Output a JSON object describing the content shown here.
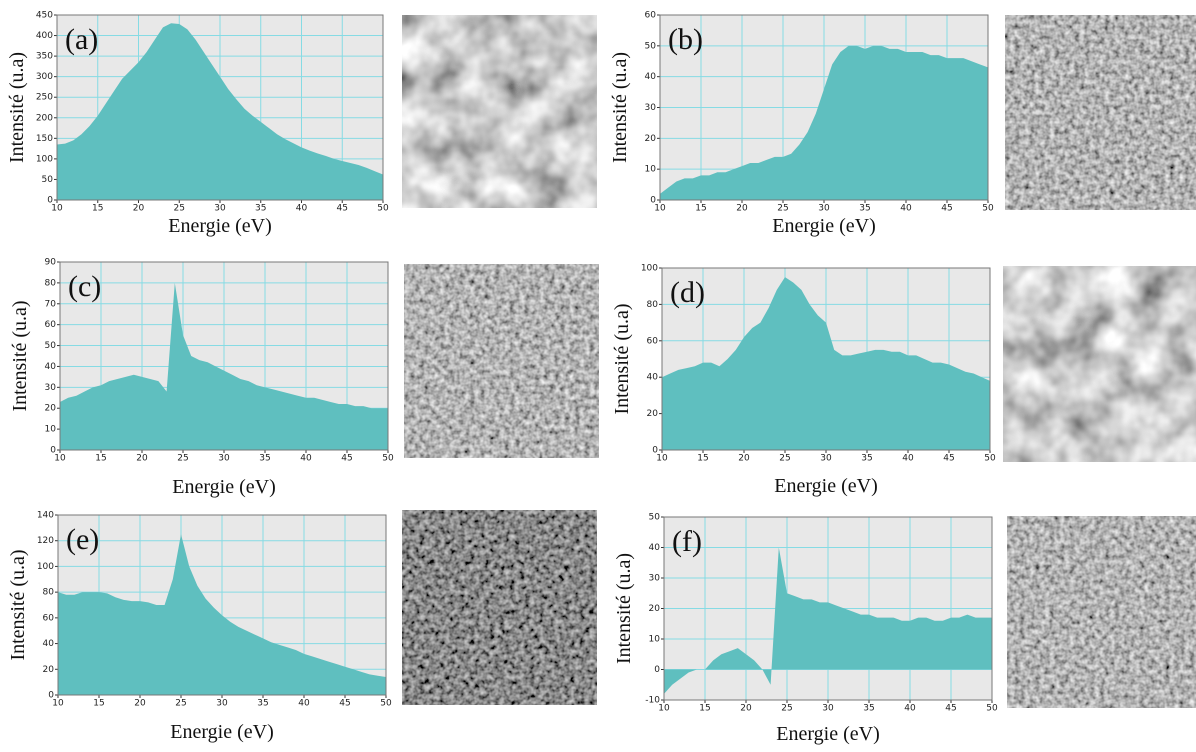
{
  "chart_data": [
    {
      "type": "area",
      "label": "(a)",
      "xlabel": "Energie (eV)",
      "ylabel": "Intensité (u.a)",
      "color": "#5fbfbf",
      "grid": true,
      "x": [
        10,
        11,
        12,
        13,
        14,
        15,
        16,
        17,
        18,
        19,
        20,
        21,
        22,
        23,
        24,
        25,
        26,
        27,
        28,
        29,
        30,
        31,
        32,
        33,
        34,
        35,
        36,
        37,
        38,
        39,
        40,
        41,
        42,
        43,
        44,
        45,
        46,
        47,
        48,
        49,
        50
      ],
      "values": [
        135,
        137,
        145,
        160,
        180,
        205,
        235,
        265,
        295,
        315,
        335,
        360,
        390,
        420,
        430,
        428,
        415,
        390,
        360,
        330,
        300,
        270,
        245,
        222,
        205,
        190,
        175,
        160,
        148,
        138,
        128,
        120,
        113,
        107,
        100,
        95,
        90,
        85,
        78,
        70,
        62
      ],
      "xlim": [
        10,
        50
      ],
      "xticks": [
        10,
        15,
        20,
        25,
        30,
        35,
        40,
        45,
        50
      ],
      "ylim": [
        0,
        450
      ],
      "yticks": [
        0,
        50,
        100,
        150,
        200,
        250,
        300,
        350,
        400,
        450
      ]
    },
    {
      "type": "area",
      "label": "(b)",
      "xlabel": "Energie (eV)",
      "ylabel": "Intensité (u.a)",
      "color": "#5fbfbf",
      "grid": true,
      "x": [
        10,
        11,
        12,
        13,
        14,
        15,
        16,
        17,
        18,
        19,
        20,
        21,
        22,
        23,
        24,
        25,
        26,
        27,
        28,
        29,
        30,
        31,
        32,
        33,
        34,
        35,
        36,
        37,
        38,
        39,
        40,
        41,
        42,
        43,
        44,
        45,
        46,
        47,
        48,
        49,
        50
      ],
      "values": [
        2,
        4,
        6,
        7,
        7,
        8,
        8,
        9,
        9,
        10,
        11,
        12,
        12,
        13,
        14,
        14,
        15,
        18,
        22,
        28,
        36,
        44,
        48,
        50,
        50,
        49,
        50,
        50,
        49,
        49,
        48,
        48,
        48,
        47,
        47,
        46,
        46,
        46,
        45,
        44,
        43
      ],
      "xlim": [
        10,
        50
      ],
      "xticks": [
        10,
        15,
        20,
        25,
        30,
        35,
        40,
        45,
        50
      ],
      "ylim": [
        0,
        60
      ],
      "yticks": [
        0,
        10,
        20,
        30,
        40,
        50,
        60
      ]
    },
    {
      "type": "area",
      "label": "(c)",
      "xlabel": "Energie (eV)",
      "ylabel": "Intensité (u.a)",
      "color": "#5fbfbf",
      "grid": true,
      "x": [
        10,
        11,
        12,
        13,
        14,
        15,
        16,
        17,
        18,
        19,
        20,
        21,
        22,
        23,
        24,
        25,
        26,
        27,
        28,
        29,
        30,
        31,
        32,
        33,
        34,
        35,
        36,
        37,
        38,
        39,
        40,
        41,
        42,
        43,
        44,
        45,
        46,
        47,
        48,
        49,
        50
      ],
      "values": [
        23,
        25,
        26,
        28,
        30,
        31,
        33,
        34,
        35,
        36,
        35,
        34,
        33,
        28,
        80,
        55,
        45,
        43,
        42,
        40,
        38,
        36,
        34,
        33,
        31,
        30,
        29,
        28,
        27,
        26,
        25,
        25,
        24,
        23,
        22,
        22,
        21,
        21,
        20,
        20,
        20
      ],
      "xlim": [
        10,
        50
      ],
      "xticks": [
        10,
        15,
        20,
        25,
        30,
        35,
        40,
        45,
        50
      ],
      "ylim": [
        0,
        90
      ],
      "yticks": [
        0,
        10,
        20,
        30,
        40,
        50,
        60,
        70,
        80,
        90
      ]
    },
    {
      "type": "area",
      "label": "(d)",
      "xlabel": "Energie (eV)",
      "ylabel": "Intensité (u.a)",
      "color": "#5fbfbf",
      "grid": true,
      "x": [
        10,
        11,
        12,
        13,
        14,
        15,
        16,
        17,
        18,
        19,
        20,
        21,
        22,
        23,
        24,
        25,
        26,
        27,
        28,
        29,
        30,
        31,
        32,
        33,
        34,
        35,
        36,
        37,
        38,
        39,
        40,
        41,
        42,
        43,
        44,
        45,
        46,
        47,
        48,
        49,
        50
      ],
      "values": [
        40,
        42,
        44,
        45,
        46,
        48,
        48,
        46,
        50,
        55,
        62,
        67,
        70,
        78,
        88,
        95,
        92,
        88,
        80,
        74,
        70,
        55,
        52,
        52,
        53,
        54,
        55,
        55,
        54,
        54,
        52,
        52,
        50,
        48,
        48,
        47,
        45,
        43,
        42,
        40,
        38
      ],
      "xlim": [
        10,
        50
      ],
      "xticks": [
        10,
        15,
        20,
        25,
        30,
        35,
        40,
        45,
        50
      ],
      "ylim": [
        0,
        100
      ],
      "yticks": [
        0,
        20,
        40,
        60,
        80,
        100
      ]
    },
    {
      "type": "area",
      "label": "(e)",
      "xlabel": "Energie (eV)",
      "ylabel": "Intensité (u.a)",
      "color": "#5fbfbf",
      "grid": true,
      "x": [
        10,
        11,
        12,
        13,
        14,
        15,
        16,
        17,
        18,
        19,
        20,
        21,
        22,
        23,
        24,
        25,
        26,
        27,
        28,
        29,
        30,
        31,
        32,
        33,
        34,
        35,
        36,
        37,
        38,
        39,
        40,
        41,
        42,
        43,
        44,
        45,
        46,
        47,
        48,
        49,
        50
      ],
      "values": [
        80,
        78,
        78,
        80,
        80,
        80,
        79,
        76,
        74,
        73,
        73,
        72,
        70,
        70,
        90,
        125,
        100,
        85,
        75,
        68,
        62,
        57,
        53,
        50,
        47,
        44,
        41,
        39,
        37,
        35,
        32,
        30,
        28,
        26,
        24,
        22,
        20,
        18,
        16,
        15,
        14
      ],
      "xlim": [
        10,
        50
      ],
      "xticks": [
        10,
        15,
        20,
        25,
        30,
        35,
        40,
        45,
        50
      ],
      "ylim": [
        0,
        140
      ],
      "yticks": [
        0,
        20,
        40,
        60,
        80,
        100,
        120,
        140
      ]
    },
    {
      "type": "area",
      "label": "(f)",
      "xlabel": "Energie (eV)",
      "ylabel": "Intensité (u.a)",
      "color": "#5fbfbf",
      "grid": true,
      "x": [
        10,
        11,
        12,
        13,
        14,
        15,
        16,
        17,
        18,
        19,
        20,
        21,
        22,
        23,
        24,
        25,
        26,
        27,
        28,
        29,
        30,
        31,
        32,
        33,
        34,
        35,
        36,
        37,
        38,
        39,
        40,
        41,
        42,
        43,
        44,
        45,
        46,
        47,
        48,
        49,
        50
      ],
      "values": [
        -8,
        -5,
        -3,
        -1,
        0,
        0,
        3,
        5,
        6,
        7,
        5,
        3,
        0,
        -5,
        40,
        25,
        24,
        23,
        23,
        22,
        22,
        21,
        20,
        19,
        18,
        18,
        17,
        17,
        17,
        16,
        16,
        17,
        17,
        16,
        16,
        17,
        17,
        18,
        17,
        17,
        17
      ],
      "xlim": [
        10,
        50
      ],
      "xticks": [
        10,
        15,
        20,
        25,
        30,
        35,
        40,
        45,
        50
      ],
      "ylim": [
        -10,
        50
      ],
      "yticks": [
        -10,
        0,
        10,
        20,
        30,
        40,
        50
      ]
    }
  ]
}
